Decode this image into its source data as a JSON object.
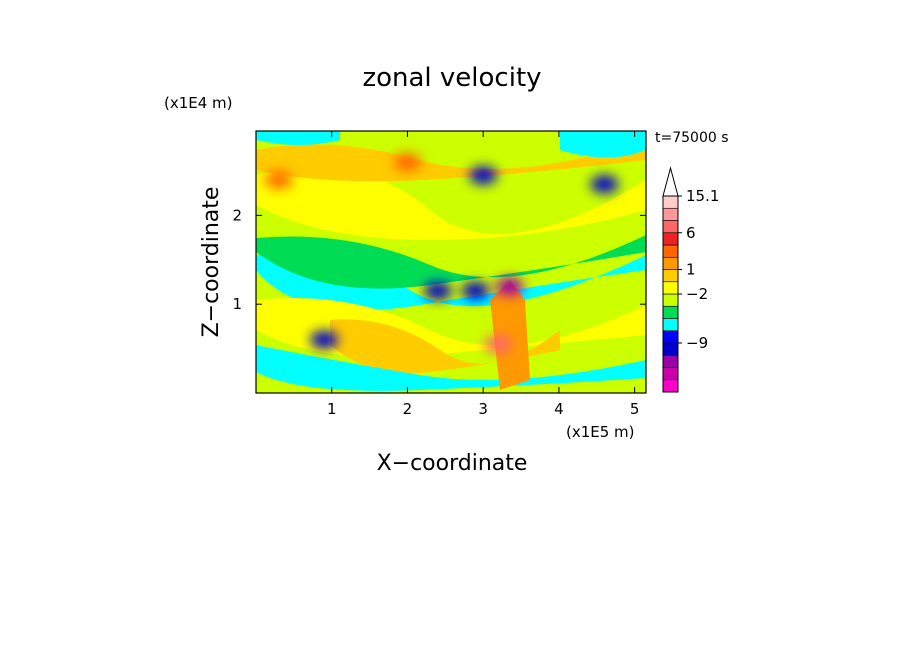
{
  "chart_data": {
    "type": "heatmap",
    "title": "zonal velocity",
    "xlabel": "X−coordinate",
    "ylabel": "Z−coordinate",
    "x_unit": "(x1E5 m)",
    "y_unit": "(x1E4 m)",
    "time_label": "t=75000 s",
    "xlim": [
      0,
      5.15
    ],
    "ylim": [
      0,
      2.95
    ],
    "x_ticks": [
      {
        "value": 1,
        "label": "1"
      },
      {
        "value": 2,
        "label": "2"
      },
      {
        "value": 3,
        "label": "3"
      },
      {
        "value": 4,
        "label": "4"
      },
      {
        "value": 5,
        "label": "5"
      }
    ],
    "y_ticks": [
      {
        "value": 1,
        "label": "1"
      },
      {
        "value": 2,
        "label": "2"
      }
    ],
    "colorbar": {
      "levels": [
        "#ff00cc",
        "#cc00aa",
        "#9900aa",
        "#0000cc",
        "#0000ff",
        "#00ffff",
        "#00dd55",
        "#ccff00",
        "#ffff00",
        "#ffcc00",
        "#ff9900",
        "#ff6600",
        "#ee2222",
        "#ff6666",
        "#ff9999",
        "#ffcccc"
      ],
      "arrow_color": "#ffffff",
      "labels": [
        {
          "text": "15.1",
          "level": 15
        },
        {
          "text": "6",
          "level": 12
        },
        {
          "text": "1",
          "level": 9
        },
        {
          "text": "−2",
          "level": 7
        },
        {
          "text": "−9",
          "level": 3
        }
      ]
    },
    "features": [
      {
        "x": 3.35,
        "z": 1.2,
        "level": 2
      },
      {
        "x": 2.4,
        "z": 1.15,
        "level": 3
      },
      {
        "x": 2.9,
        "z": 1.15,
        "level": 3
      },
      {
        "x": 3.0,
        "z": 2.45,
        "level": 3
      },
      {
        "x": 0.9,
        "z": 0.6,
        "level": 3
      },
      {
        "x": 4.6,
        "z": 2.35,
        "level": 3
      },
      {
        "x": 3.2,
        "z": 0.55,
        "level": 13
      },
      {
        "x": 2.0,
        "z": 2.6,
        "level": 11
      },
      {
        "x": 0.3,
        "z": 2.4,
        "level": 11
      }
    ]
  }
}
